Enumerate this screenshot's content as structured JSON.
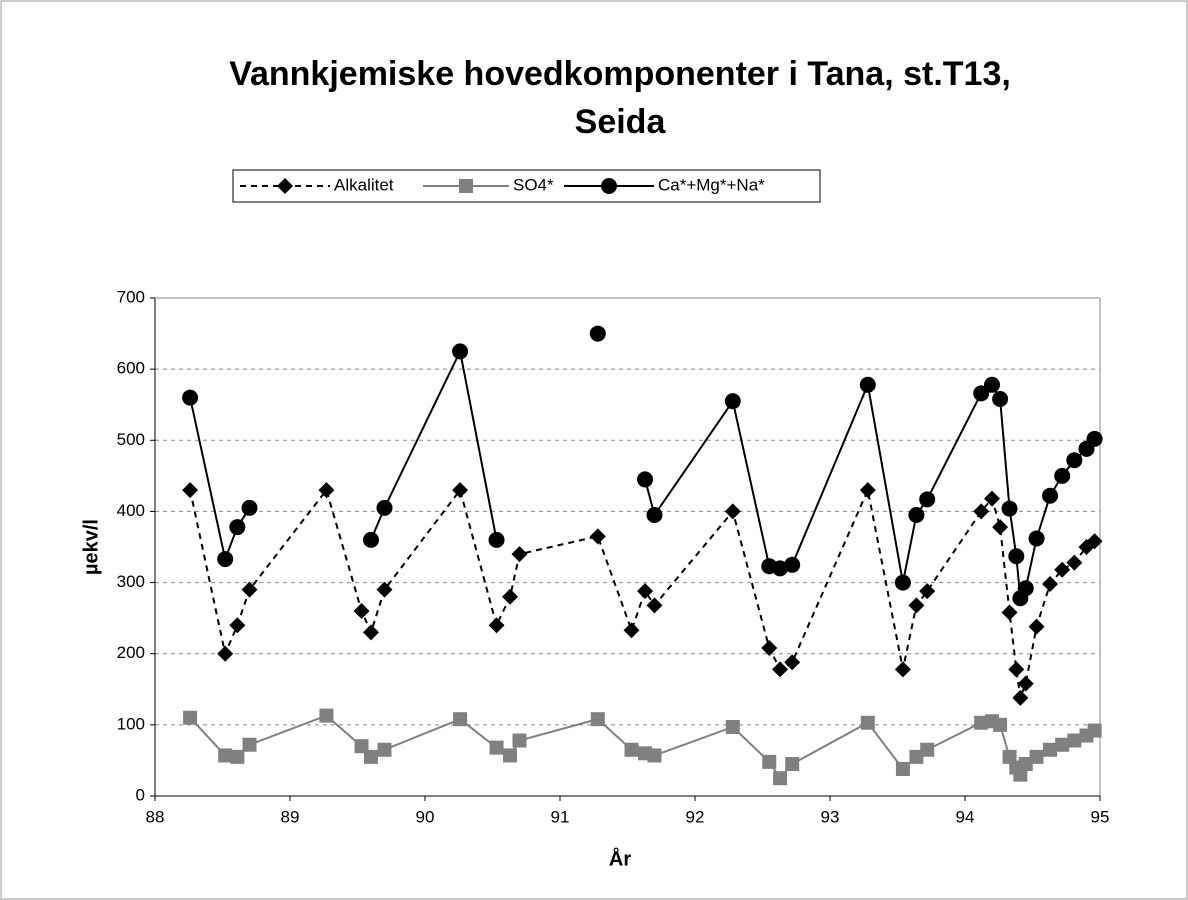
{
  "chart_data": {
    "type": "line",
    "title": [
      "Vannkjemiske hovedkomponenter i Tana, st.T13,",
      "Seida"
    ],
    "x_label": "År",
    "y_label": "µekv/l",
    "x": [
      88.26,
      88.52,
      88.61,
      88.7,
      89.27,
      89.53,
      89.6,
      89.7,
      90.26,
      90.53,
      90.63,
      90.7,
      91.28,
      91.53,
      91.63,
      91.7,
      92.28,
      92.55,
      92.63,
      92.72,
      93.28,
      93.54,
      93.64,
      93.72,
      94.12,
      94.2,
      94.26,
      94.33,
      94.38,
      94.41,
      94.45,
      94.53,
      94.63,
      94.72,
      94.81,
      94.9,
      94.96
    ],
    "series": [
      {
        "name": "Alkalitet",
        "color": "#000000",
        "line_style": "dashed",
        "marker": "diamond",
        "values": [
          430,
          200,
          240,
          290,
          430,
          260,
          230,
          290,
          430,
          240,
          280,
          340,
          365,
          233,
          288,
          268,
          400,
          208,
          178,
          188,
          430,
          178,
          268,
          288,
          400,
          418,
          378,
          258,
          178,
          138,
          158,
          238,
          298,
          318,
          328,
          350,
          358
        ]
      },
      {
        "name": "SO4*",
        "color": "#808080",
        "line_style": "solid",
        "marker": "square",
        "values": [
          110,
          57,
          55,
          72,
          113,
          70,
          55,
          65,
          108,
          68,
          57,
          78,
          108,
          65,
          60,
          57,
          97,
          48,
          25,
          45,
          103,
          38,
          55,
          65,
          103,
          105,
          100,
          55,
          40,
          30,
          45,
          55,
          65,
          72,
          78,
          85,
          92
        ]
      },
      {
        "name": "Ca*+Mg*+Na*",
        "color": "#000000",
        "line_style": "solid",
        "marker": "circle",
        "values": [
          560,
          333,
          378,
          405,
          null,
          null,
          360,
          405,
          625,
          360,
          null,
          null,
          650,
          null,
          445,
          395,
          555,
          323,
          320,
          325,
          578,
          300,
          395,
          417,
          566,
          578,
          558,
          404,
          337,
          278,
          292,
          362,
          422,
          450,
          472,
          488,
          502
        ]
      }
    ],
    "xlim": [
      88,
      95
    ],
    "xticks": [
      88,
      89,
      90,
      91,
      92,
      93,
      94,
      95
    ],
    "ylim": [
      0,
      700
    ],
    "yticks": [
      0,
      100,
      200,
      300,
      400,
      500,
      600,
      700
    ],
    "grid": true,
    "legend": "top"
  }
}
